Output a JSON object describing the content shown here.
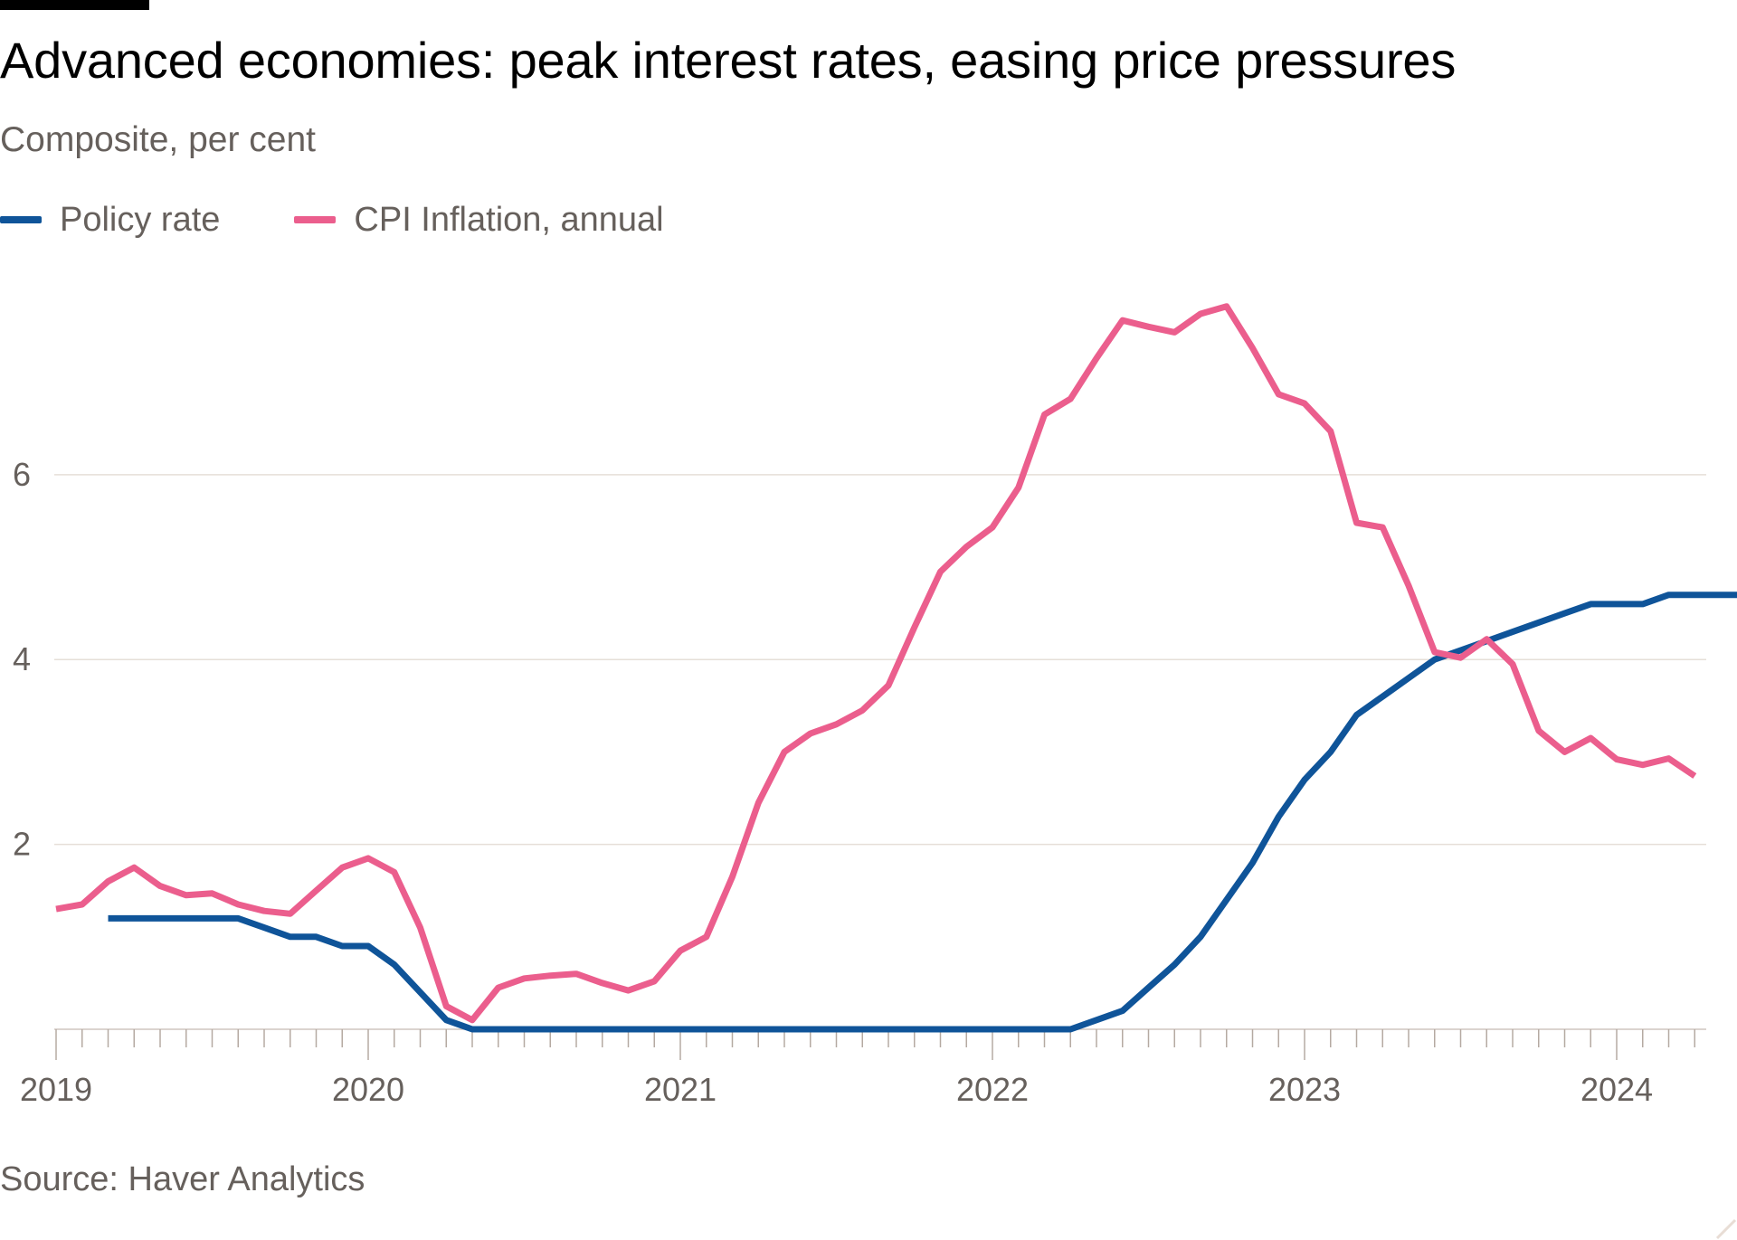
{
  "header": {
    "title": "Advanced economies: peak interest rates, easing price pressures",
    "subtitle": "Composite, per cent"
  },
  "legend": [
    {
      "label": "Policy rate",
      "color": "#0f5499"
    },
    {
      "label": "CPI Inflation, annual",
      "color": "#eb5e8d"
    }
  ],
  "footer": {
    "source": "Source: Haver Analytics"
  },
  "chart_data": {
    "type": "line",
    "title": "Advanced economies: peak interest rates, easing price pressures",
    "subtitle": "Composite, per cent",
    "xlabel": "",
    "ylabel": "",
    "x_axis": {
      "type": "monthly",
      "start": "2019-01",
      "end": "2024-04",
      "tick_labels": [
        "2019",
        "2020",
        "2021",
        "2022",
        "2023",
        "2024"
      ],
      "ticks_every_month": true
    },
    "y_axis": {
      "ylim": [
        0,
        8.2
      ],
      "tick_labels": [
        "2",
        "4",
        "6"
      ],
      "ticks": [
        2,
        4,
        6
      ]
    },
    "grid": "horizontal",
    "legend_position": "top-left",
    "series": [
      {
        "name": "Policy rate",
        "color": "#0f5499",
        "start": "2019-03",
        "values": [
          1.2,
          1.2,
          1.2,
          1.2,
          1.2,
          1.2,
          1.1,
          1.0,
          1.0,
          0.9,
          0.9,
          0.7,
          0.4,
          0.1,
          0.0,
          0.0,
          0.0,
          0.0,
          0.0,
          0.0,
          0.0,
          0.0,
          0.0,
          0.0,
          0.0,
          0.0,
          0.0,
          0.0,
          0.0,
          0.0,
          0.0,
          0.0,
          0.0,
          0.0,
          0.0,
          0.0,
          0.0,
          0.0,
          0.1,
          0.2,
          0.45,
          0.7,
          1.0,
          1.4,
          1.8,
          2.3,
          2.7,
          3.0,
          3.4,
          3.6,
          3.8,
          4.0,
          4.1,
          4.2,
          4.3,
          4.4,
          4.5,
          4.6,
          4.6,
          4.6,
          4.7,
          4.7,
          4.7,
          4.7,
          4.7
        ]
      },
      {
        "name": "CPI Inflation, annual",
        "color": "#eb5e8d",
        "start": "2019-01",
        "values": [
          1.3,
          1.35,
          1.6,
          1.75,
          1.55,
          1.45,
          1.47,
          1.35,
          1.28,
          1.25,
          1.5,
          1.75,
          1.85,
          1.7,
          1.1,
          0.25,
          0.1,
          0.45,
          0.55,
          0.58,
          0.6,
          0.5,
          0.42,
          0.52,
          0.85,
          1.0,
          1.65,
          2.45,
          3.0,
          3.2,
          3.3,
          3.45,
          3.72,
          4.35,
          4.95,
          5.22,
          5.43,
          5.86,
          6.65,
          6.82,
          7.26,
          7.67,
          7.6,
          7.54,
          7.74,
          7.82,
          7.37,
          6.87,
          6.77,
          6.47,
          5.48,
          5.43,
          4.8,
          4.08,
          4.02,
          4.22,
          3.95,
          3.23,
          3.0,
          3.15,
          2.92,
          2.86,
          2.93,
          2.74
        ]
      }
    ]
  }
}
